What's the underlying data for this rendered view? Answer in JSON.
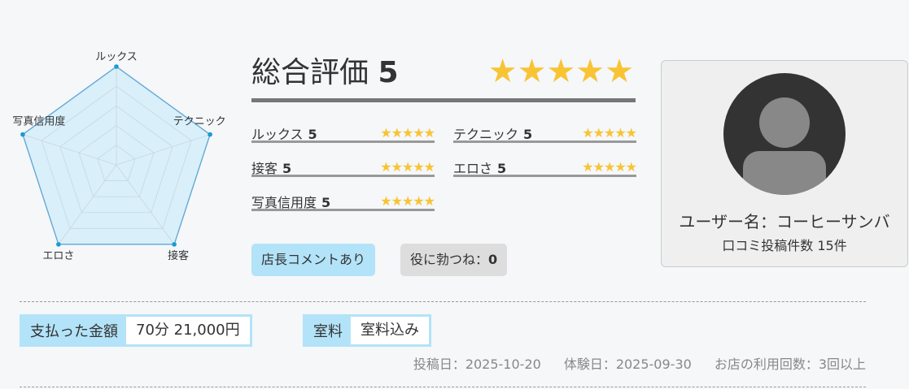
{
  "radar": {
    "axes": [
      "ルックス",
      "テクニック",
      "接客",
      "エロさ",
      "写真信用度"
    ],
    "values": [
      5,
      5,
      5,
      5,
      5
    ],
    "max": 5,
    "fill": "#d9effa",
    "stroke": "#5fa8d3",
    "point": "#1a9ad6"
  },
  "overall": {
    "label": "総合評価",
    "score": "5",
    "stars": "★★★★★"
  },
  "items": [
    {
      "label": "ルックス",
      "score": "5",
      "stars": "★★★★★"
    },
    {
      "label": "テクニック",
      "score": "5",
      "stars": "★★★★★"
    },
    {
      "label": "接客",
      "score": "5",
      "stars": "★★★★★"
    },
    {
      "label": "エロさ",
      "score": "5",
      "stars": "★★★★★"
    },
    {
      "label": "写真信用度",
      "score": "5",
      "stars": "★★★★★"
    }
  ],
  "buttons": {
    "manager_comment": "店長コメントあり",
    "helpful_label": "役に勃つね：",
    "helpful_count": "0"
  },
  "user": {
    "name": "ユーザー名：コーヒーサンバ",
    "review_count": "口コミ投稿件数 15件"
  },
  "payment": {
    "label": "支払った金額",
    "value": "70分 21,000円"
  },
  "room": {
    "label": "室料",
    "value": "室料込み"
  },
  "meta": {
    "posted": "投稿日：2025-10-20",
    "visited": "体験日：2025-09-30",
    "visits": "お店の利用回数：3回以上"
  },
  "colors": {
    "star": "#f8c434",
    "tag": "#b3e3f8",
    "helpful_bg": "#dddddd"
  }
}
